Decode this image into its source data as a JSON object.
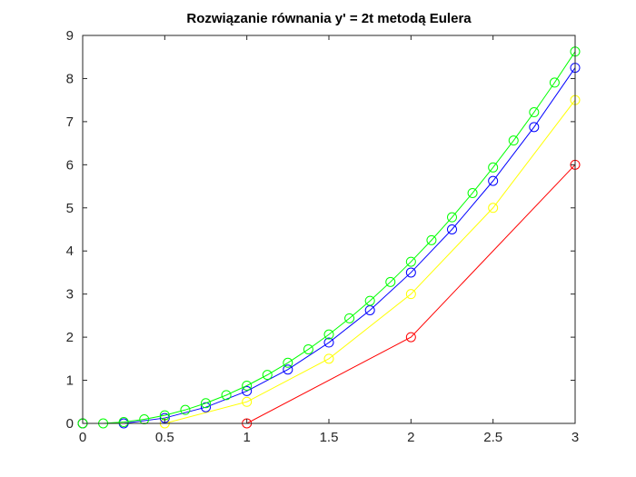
{
  "chart_data": {
    "type": "line",
    "title": "Rozwiązanie równania y' = 2t metodą Eulera",
    "xlabel": "",
    "ylabel": "",
    "xlim": [
      0,
      3
    ],
    "ylim": [
      0,
      9
    ],
    "xticks": [
      "0",
      "0.5",
      "1",
      "1.5",
      "2",
      "2.5",
      "3"
    ],
    "yticks": [
      "0",
      "1",
      "2",
      "3",
      "4",
      "5",
      "6",
      "7",
      "8",
      "9"
    ],
    "grid": false,
    "legend": "none",
    "marker": "circle",
    "series": [
      {
        "color": "#ff0000",
        "x": [
          0,
          1,
          2,
          3
        ],
        "y": [
          0,
          0,
          2,
          6
        ]
      },
      {
        "color": "#ffff00",
        "x": [
          0,
          0.5,
          1,
          1.5,
          2,
          2.5,
          3
        ],
        "y": [
          0,
          0,
          0.5,
          1.5,
          3,
          5,
          7.5
        ]
      },
      {
        "color": "#0000ff",
        "x": [
          0,
          0.25,
          0.5,
          0.75,
          1,
          1.25,
          1.5,
          1.75,
          2,
          2.25,
          2.5,
          2.75,
          3
        ],
        "y": [
          0,
          0,
          0.125,
          0.375,
          0.75,
          1.25,
          1.875,
          2.625,
          3.5,
          4.5,
          5.625,
          6.875,
          8.25
        ]
      },
      {
        "color": "#00ff00",
        "x": [
          0,
          0.125,
          0.25,
          0.375,
          0.5,
          0.625,
          0.75,
          0.875,
          1,
          1.125,
          1.25,
          1.375,
          1.5,
          1.625,
          1.75,
          1.875,
          2,
          2.125,
          2.25,
          2.375,
          2.5,
          2.625,
          2.75,
          2.875,
          3
        ],
        "y": [
          0,
          0,
          0.03125,
          0.09375,
          0.1875,
          0.3125,
          0.46875,
          0.65625,
          0.875,
          1.125,
          1.40625,
          1.71875,
          2.0625,
          2.4375,
          2.84375,
          3.28125,
          3.75,
          4.25,
          4.78125,
          5.34375,
          5.9375,
          6.5625,
          7.21875,
          7.90625,
          8.625
        ]
      }
    ]
  }
}
